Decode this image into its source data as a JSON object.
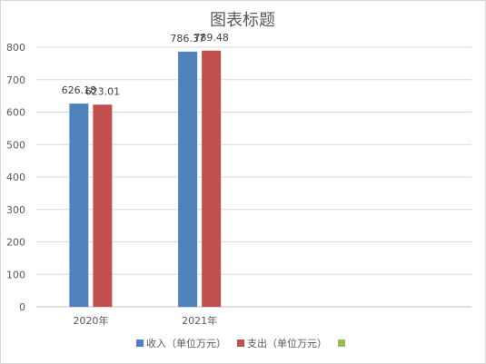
{
  "chart_data": {
    "type": "bar",
    "title": "图表标题",
    "categories": [
      "2020年",
      "2021年",
      "",
      ""
    ],
    "series": [
      {
        "name": "收入（单位万元）",
        "values": [
          626.18,
          786.37,
          null,
          null
        ],
        "color": "#4F81BD"
      },
      {
        "name": "支出（单位万元）",
        "values": [
          623.01,
          789.48,
          null,
          null
        ],
        "color": "#C0504D"
      },
      {
        "name": "",
        "values": [
          null,
          null,
          null,
          null
        ],
        "color": "#9BBB59"
      }
    ],
    "data_labels": [
      [
        "626.18",
        "786.37"
      ],
      [
        "623.01",
        "789.48"
      ]
    ],
    "ylim": [
      0,
      800
    ],
    "yticks": [
      "0",
      "100",
      "200",
      "300",
      "400",
      "500",
      "600",
      "700",
      "800"
    ],
    "grid": true,
    "legend_position": "bottom"
  }
}
